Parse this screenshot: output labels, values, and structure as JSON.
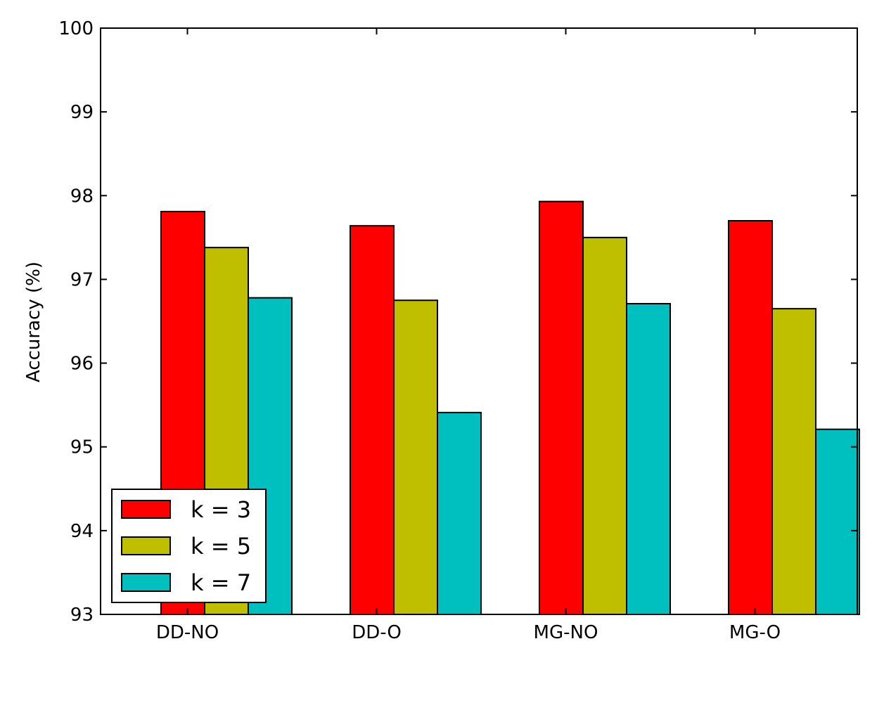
{
  "chart_data": {
    "type": "bar",
    "title": "",
    "xlabel": "",
    "ylabel": "Accuracy (%)",
    "categories": [
      "DD-NO",
      "DD-O",
      "MG-NO",
      "MG-O"
    ],
    "ylim": [
      93,
      100
    ],
    "yticks": [
      "93",
      "94",
      "95",
      "96",
      "97",
      "98",
      "99",
      "100"
    ],
    "grid": false,
    "legend_position": "lower-left",
    "series": [
      {
        "name": "k = 3",
        "color": "#ff0000",
        "values": [
          97.81,
          97.64,
          97.93,
          97.7
        ]
      },
      {
        "name": "k = 5",
        "color": "#bfbf00",
        "values": [
          97.38,
          96.75,
          97.5,
          96.65
        ]
      },
      {
        "name": "k = 7",
        "color": "#00bfbf",
        "values": [
          96.78,
          95.41,
          96.71,
          95.21
        ]
      }
    ]
  }
}
